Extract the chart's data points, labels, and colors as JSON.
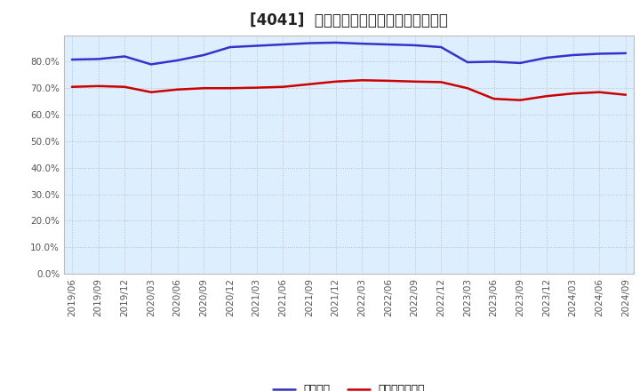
{
  "title": "[4041]  固定比率、固定長期適合率の推移",
  "x_labels": [
    "2019/06",
    "2019/09",
    "2019/12",
    "2020/03",
    "2020/06",
    "2020/09",
    "2020/12",
    "2021/03",
    "2021/06",
    "2021/09",
    "2021/12",
    "2022/03",
    "2022/06",
    "2022/09",
    "2022/12",
    "2023/03",
    "2023/06",
    "2023/09",
    "2023/12",
    "2024/03",
    "2024/06",
    "2024/09"
  ],
  "fixed_ratio": [
    80.8,
    81.0,
    82.0,
    79.0,
    80.5,
    82.5,
    85.5,
    86.0,
    86.5,
    87.0,
    87.2,
    86.8,
    86.5,
    86.2,
    85.5,
    79.8,
    80.0,
    79.5,
    81.5,
    82.5,
    83.0,
    83.2
  ],
  "fixed_longterm_ratio": [
    70.5,
    70.8,
    70.5,
    68.5,
    69.5,
    70.0,
    70.0,
    70.2,
    70.5,
    71.5,
    72.5,
    73.0,
    72.8,
    72.5,
    72.3,
    70.0,
    66.0,
    65.5,
    67.0,
    68.0,
    68.5,
    67.5
  ],
  "line_color_blue": "#3333CC",
  "line_color_red": "#CC0000",
  "background_color": "#FFFFFF",
  "plot_background_color": "#DDEEFF",
  "grid_color": "#AAAAAA",
  "ylim_min": 0,
  "ylim_max": 90,
  "yticks": [
    0,
    10,
    20,
    30,
    40,
    50,
    60,
    70,
    80
  ],
  "legend_blue": "固定比率",
  "legend_red": "固定長期適合率",
  "title_fontsize": 12,
  "tick_fontsize": 7.5,
  "legend_fontsize": 9
}
